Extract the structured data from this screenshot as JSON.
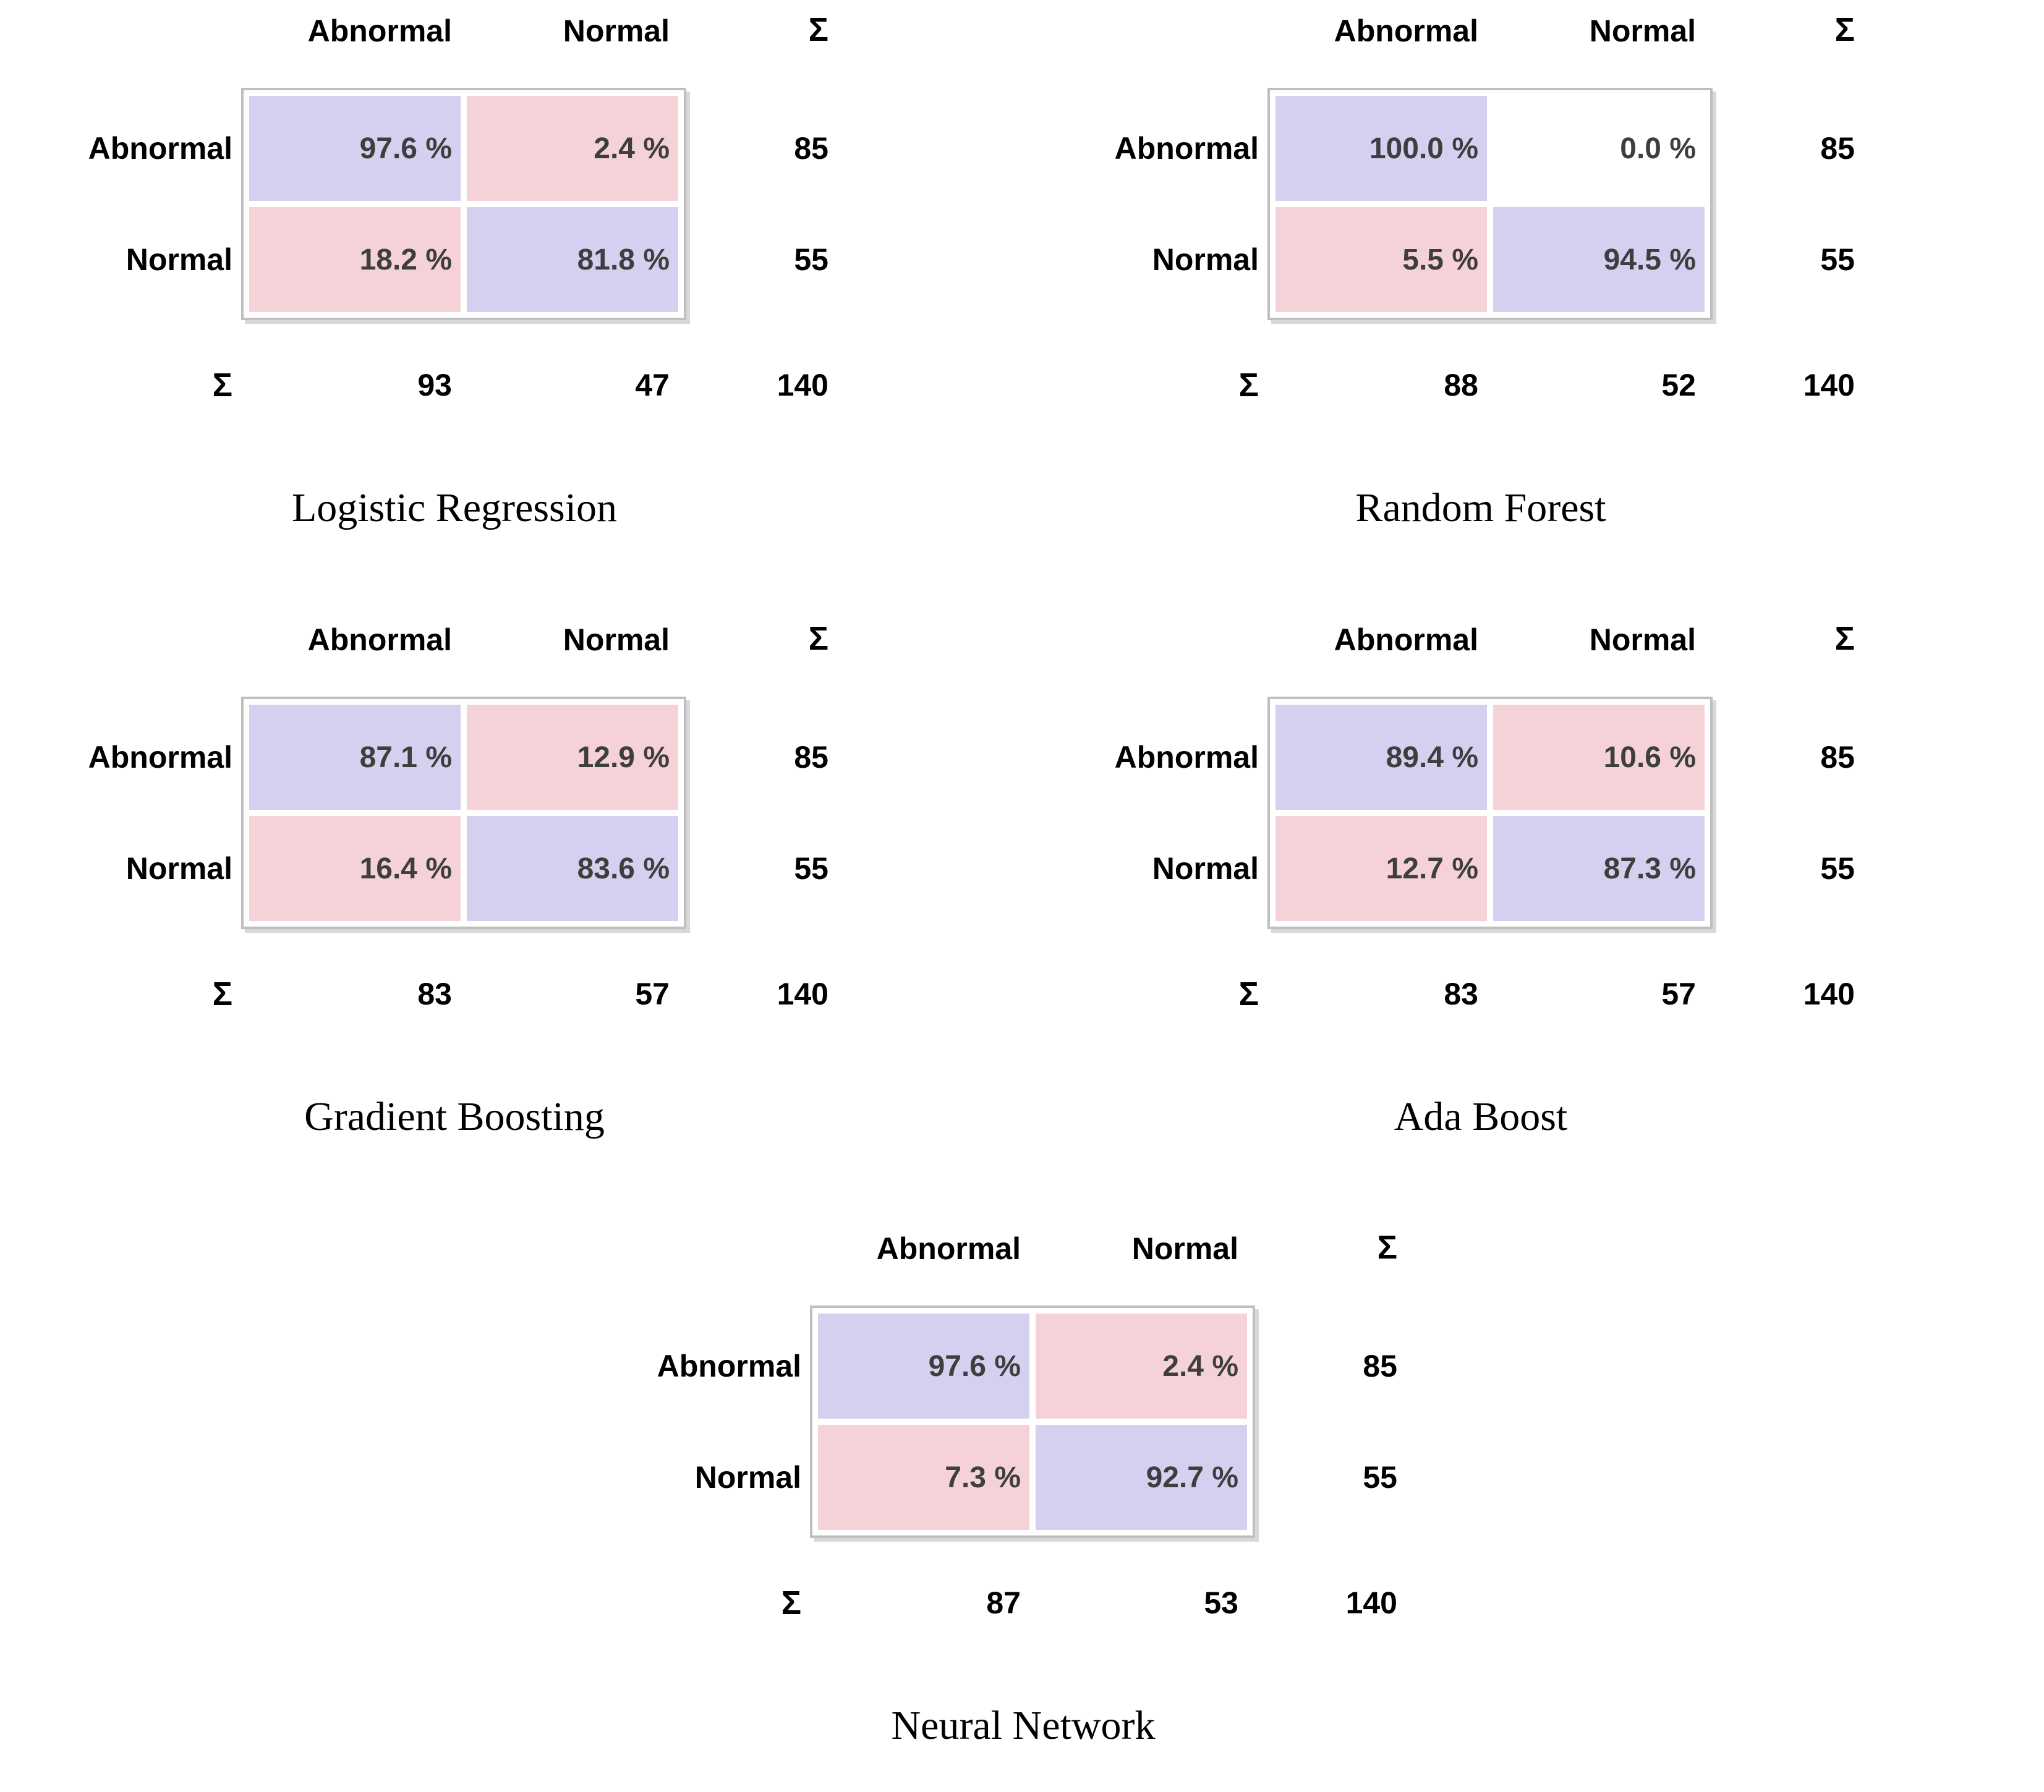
{
  "figure": {
    "background": "#ffffff"
  },
  "sigma": "Σ",
  "colors": {
    "correct_cell": "#d4d0f0",
    "error_cell": "#f5d2d8",
    "zero_cell": "#ffffff",
    "table_border": "#bfbfbf",
    "table_shadow": "#d8d8d8",
    "cell_text": "#3e3e3e",
    "label_text": "#000000"
  },
  "matrices": [
    {
      "title": "Logistic Regression",
      "col_headers": [
        "Abnormal",
        "Normal"
      ],
      "rows": [
        {
          "label": "Abnormal",
          "cells": [
            {
              "text": "97.6 %",
              "bg": "#d4d0f0"
            },
            {
              "text": "2.4 %",
              "bg": "#f5d2d8"
            }
          ],
          "sum": "85"
        },
        {
          "label": "Normal",
          "cells": [
            {
              "text": "18.2 %",
              "bg": "#f5d2d8"
            },
            {
              "text": "81.8 %",
              "bg": "#d4d0f0"
            }
          ],
          "sum": "55"
        }
      ],
      "col_sums": [
        "93",
        "47"
      ],
      "total": "140"
    },
    {
      "title": "Random Forest",
      "col_headers": [
        "Abnormal",
        "Normal"
      ],
      "rows": [
        {
          "label": "Abnormal",
          "cells": [
            {
              "text": "100.0 %",
              "bg": "#d4d0f0"
            },
            {
              "text": "0.0 %",
              "bg": "#ffffff"
            }
          ],
          "sum": "85"
        },
        {
          "label": "Normal",
          "cells": [
            {
              "text": "5.5 %",
              "bg": "#f5d2d8"
            },
            {
              "text": "94.5 %",
              "bg": "#d4d0f0"
            }
          ],
          "sum": "55"
        }
      ],
      "col_sums": [
        "88",
        "52"
      ],
      "total": "140"
    },
    {
      "title": "Gradient Boosting",
      "col_headers": [
        "Abnormal",
        "Normal"
      ],
      "rows": [
        {
          "label": "Abnormal",
          "cells": [
            {
              "text": "87.1 %",
              "bg": "#d4d0f0"
            },
            {
              "text": "12.9 %",
              "bg": "#f5d2d8"
            }
          ],
          "sum": "85"
        },
        {
          "label": "Normal",
          "cells": [
            {
              "text": "16.4 %",
              "bg": "#f5d2d8"
            },
            {
              "text": "83.6 %",
              "bg": "#d4d0f0"
            }
          ],
          "sum": "55"
        }
      ],
      "col_sums": [
        "83",
        "57"
      ],
      "total": "140"
    },
    {
      "title": "Ada Boost",
      "col_headers": [
        "Abnormal",
        "Normal"
      ],
      "rows": [
        {
          "label": "Abnormal",
          "cells": [
            {
              "text": "89.4 %",
              "bg": "#d4d0f0"
            },
            {
              "text": "10.6 %",
              "bg": "#f5d2d8"
            }
          ],
          "sum": "85"
        },
        {
          "label": "Normal",
          "cells": [
            {
              "text": "12.7 %",
              "bg": "#f5d2d8"
            },
            {
              "text": "87.3 %",
              "bg": "#d4d0f0"
            }
          ],
          "sum": "55"
        }
      ],
      "col_sums": [
        "83",
        "57"
      ],
      "total": "140"
    },
    {
      "title": "Neural Network",
      "col_headers": [
        "Abnormal",
        "Normal"
      ],
      "rows": [
        {
          "label": "Abnormal",
          "cells": [
            {
              "text": "97.6 %",
              "bg": "#d4d0f0"
            },
            {
              "text": "2.4 %",
              "bg": "#f5d2d8"
            }
          ],
          "sum": "85"
        },
        {
          "label": "Normal",
          "cells": [
            {
              "text": "7.3 %",
              "bg": "#f5d2d8"
            },
            {
              "text": "92.7 %",
              "bg": "#d4d0f0"
            }
          ],
          "sum": "55"
        }
      ],
      "col_sums": [
        "87",
        "53"
      ],
      "total": "140"
    }
  ],
  "chart_data": [
    {
      "type": "heatmap",
      "title": "Logistic Regression",
      "x_categories": [
        "Abnormal",
        "Normal"
      ],
      "y_categories": [
        "Abnormal",
        "Normal"
      ],
      "values_percent": [
        [
          97.6,
          2.4
        ],
        [
          18.2,
          81.8
        ]
      ],
      "row_totals": [
        85,
        55
      ],
      "col_totals": [
        93,
        47
      ],
      "grand_total": 140,
      "legend_position": "none",
      "grid": false
    },
    {
      "type": "heatmap",
      "title": "Random Forest",
      "x_categories": [
        "Abnormal",
        "Normal"
      ],
      "y_categories": [
        "Abnormal",
        "Normal"
      ],
      "values_percent": [
        [
          100.0,
          0.0
        ],
        [
          5.5,
          94.5
        ]
      ],
      "row_totals": [
        85,
        55
      ],
      "col_totals": [
        88,
        52
      ],
      "grand_total": 140,
      "legend_position": "none",
      "grid": false
    },
    {
      "type": "heatmap",
      "title": "Gradient Boosting",
      "x_categories": [
        "Abnormal",
        "Normal"
      ],
      "y_categories": [
        "Abnormal",
        "Normal"
      ],
      "values_percent": [
        [
          87.1,
          12.9
        ],
        [
          16.4,
          83.6
        ]
      ],
      "row_totals": [
        85,
        55
      ],
      "col_totals": [
        83,
        57
      ],
      "grand_total": 140,
      "legend_position": "none",
      "grid": false
    },
    {
      "type": "heatmap",
      "title": "Ada Boost",
      "x_categories": [
        "Abnormal",
        "Normal"
      ],
      "y_categories": [
        "Abnormal",
        "Normal"
      ],
      "values_percent": [
        [
          89.4,
          10.6
        ],
        [
          12.7,
          87.3
        ]
      ],
      "row_totals": [
        85,
        55
      ],
      "col_totals": [
        83,
        57
      ],
      "grand_total": 140,
      "legend_position": "none",
      "grid": false
    },
    {
      "type": "heatmap",
      "title": "Neural Network",
      "x_categories": [
        "Abnormal",
        "Normal"
      ],
      "y_categories": [
        "Abnormal",
        "Normal"
      ],
      "values_percent": [
        [
          97.6,
          2.4
        ],
        [
          7.3,
          92.7
        ]
      ],
      "row_totals": [
        85,
        55
      ],
      "col_totals": [
        87,
        53
      ],
      "grand_total": 140,
      "legend_position": "none",
      "grid": false
    }
  ]
}
